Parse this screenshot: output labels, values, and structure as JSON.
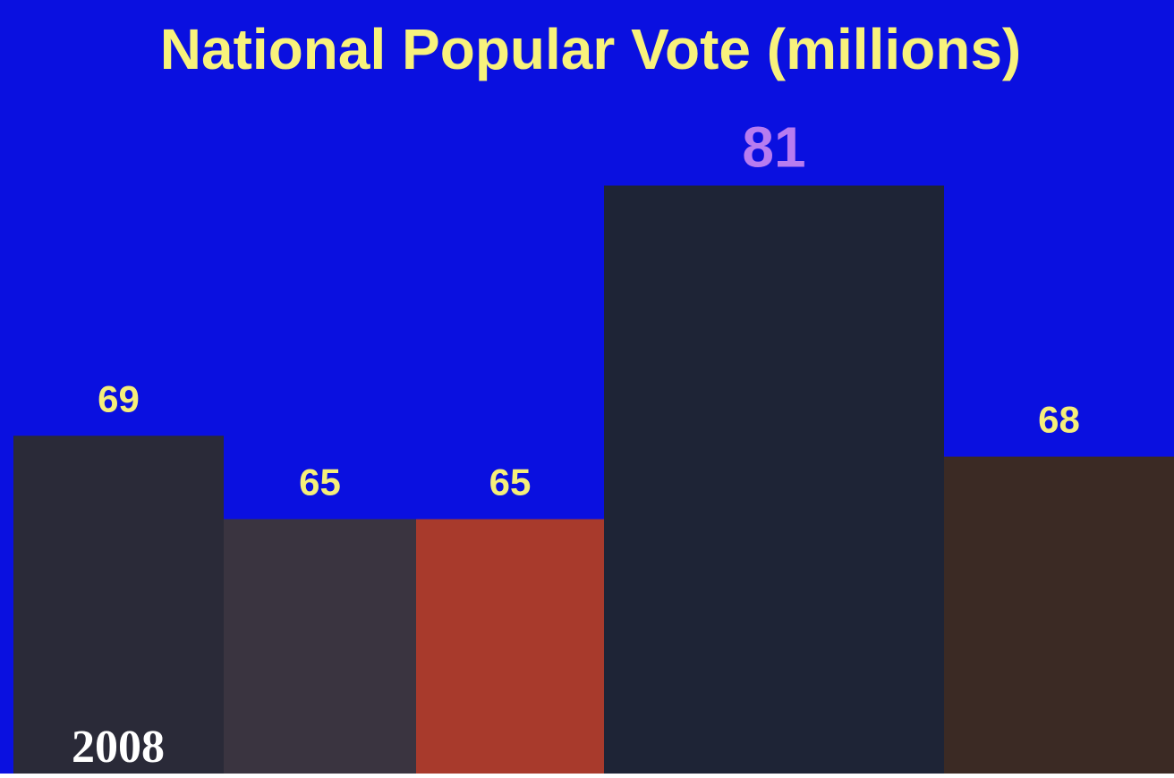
{
  "chart_data": {
    "type": "bar",
    "title": "National Popular Vote (millions)",
    "categories": [
      null,
      null,
      null,
      null,
      null
    ],
    "values": [
      69,
      65,
      65,
      81,
      68
    ],
    "colors": [
      "#2a2a38",
      "#3a3440",
      "#a83a2c",
      "#1e2436",
      "#3b2a24"
    ],
    "label_colors": [
      "#f5ee7a",
      "#f5ee7a",
      "#f5ee7a",
      "#b77cf0",
      "#f5ee7a"
    ],
    "background": "#0a10e0",
    "ylim": [
      52.8,
      89.9
    ],
    "annotation": "2008"
  }
}
